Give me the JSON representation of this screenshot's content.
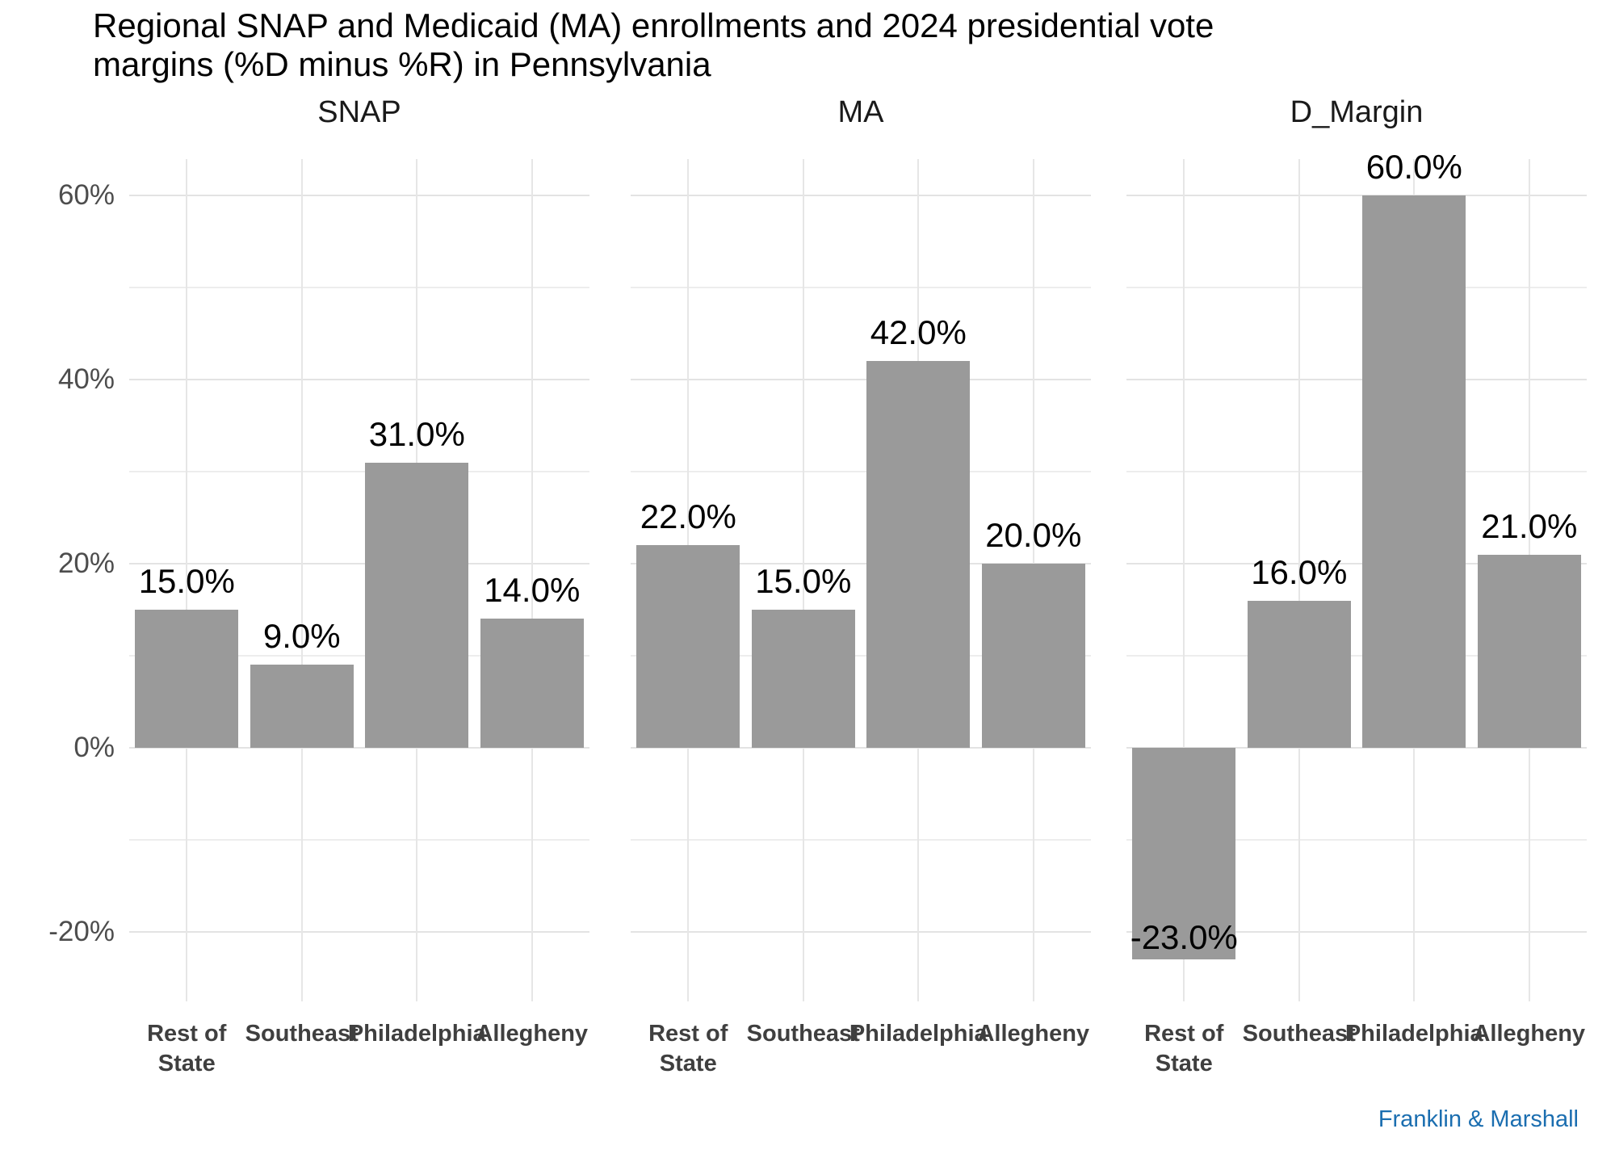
{
  "title_lines": [
    "Regional SNAP and Medicaid (MA) enrollments and 2024 presidential vote",
    "margins (%D minus %R) in Pennsylvania"
  ],
  "credit": "Franklin & Marshall",
  "colors": {
    "bar": "#9a9a9a",
    "credit_blue": "#1b6eb0",
    "value_label": "#000000",
    "axis_text": "#4d4d4d",
    "x_axis_text": "#3f3f3f"
  },
  "chart_data": {
    "type": "bar",
    "title": "Regional SNAP and Medicaid (MA) enrollments and 2024 presidential vote margins (%D minus %R) in Pennsylvania",
    "categories": [
      "Rest of\nState",
      "Southeast",
      "Philadelphia",
      "Allegheny"
    ],
    "facets": [
      {
        "label": "SNAP",
        "values": [
          15.0,
          9.0,
          31.0,
          14.0
        ],
        "value_labels": [
          "15.0%",
          "9.0%",
          "31.0%",
          "14.0%"
        ]
      },
      {
        "label": "MA",
        "values": [
          22.0,
          15.0,
          42.0,
          20.0
        ],
        "value_labels": [
          "22.0%",
          "15.0%",
          "42.0%",
          "20.0%"
        ]
      },
      {
        "label": "D_Margin",
        "values": [
          -23.0,
          16.0,
          60.0,
          21.0
        ],
        "value_labels": [
          "-23.0%",
          "16.0%",
          "60.0%",
          "21.0%"
        ]
      }
    ],
    "y_axis": {
      "ticks": [
        {
          "value": 60,
          "label": "60%"
        },
        {
          "value": 40,
          "label": "40%"
        },
        {
          "value": 20,
          "label": "20%"
        },
        {
          "value": 0,
          "label": "0%"
        },
        {
          "value": -20,
          "label": "-20%"
        }
      ],
      "minor_ticks": [
        50,
        30,
        10,
        -10
      ],
      "range": [
        -27.5,
        64
      ]
    },
    "grid": true,
    "legend": false,
    "xlabel": "",
    "ylabel": ""
  }
}
